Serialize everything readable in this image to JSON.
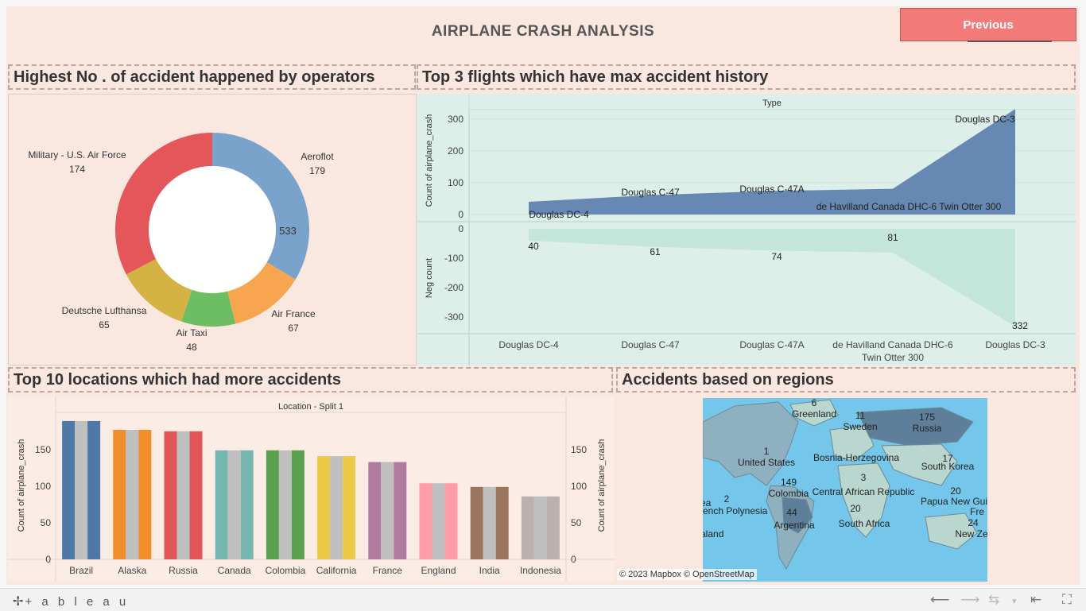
{
  "dashboard": {
    "title": "AIRPLANE CRASH ANALYSIS",
    "previous_button": "Previous"
  },
  "panels": {
    "operators_title": "Highest No . of accident happened by operators",
    "flights_title": "Top 3 flights which have max accident history",
    "locations_title": "Top 10 locations which had more accidents",
    "regions_title": "Accidents based on regions"
  },
  "colors": {
    "blue": "#7aa3cc",
    "orange": "#f8a54f",
    "green": "#6dbd63",
    "yellow": "#d4b244",
    "red": "#e4565a",
    "area_top": "#6688b2",
    "area_bottom": "#cde9e0"
  },
  "chart_data": [
    {
      "id": "operators",
      "type": "pie",
      "donut": true,
      "center_label": "533",
      "slices": [
        {
          "label": "Aeroflot",
          "value": 179,
          "color": "#7aa3cc"
        },
        {
          "label": "Air France",
          "value": 67,
          "color": "#f8a54f"
        },
        {
          "label": "Air Taxi",
          "value": 48,
          "color": "#6dbd63"
        },
        {
          "label": "Deutsche Lufthansa",
          "value": 65,
          "color": "#d4b244"
        },
        {
          "label": "Military - U.S. Air Force",
          "value": 174,
          "color": "#e4565a"
        }
      ]
    },
    {
      "id": "flights",
      "type": "area",
      "header": "Type",
      "categories": [
        "Douglas DC-4",
        "Douglas C-47",
        "Douglas C-47A",
        "de Havilland Canada DHC-6 Twin Otter 300",
        "Douglas DC-3"
      ],
      "category_axis_labels": [
        "Douglas DC-4",
        "Douglas C-47",
        "Douglas C-47A",
        "de Havilland Canada DHC-6|Twin Otter 300",
        "Douglas DC-3"
      ],
      "series": [
        {
          "name": "Count of airplane_crash",
          "values": [
            40,
            61,
            74,
            81,
            332
          ],
          "color": "#6688b2",
          "ylim": [
            0,
            350
          ],
          "ticks": [
            0,
            100,
            200,
            300
          ]
        },
        {
          "name": "Neg count",
          "values": [
            -40,
            -61,
            -74,
            -81,
            -332
          ],
          "color": "#cde9e0",
          "ylim": [
            -350,
            0
          ],
          "ticks": [
            0,
            -100,
            -200,
            -300
          ]
        }
      ],
      "value_labels": [
        "40",
        "61",
        "74",
        "81",
        "332"
      ],
      "top_labels": [
        "Douglas DC-4",
        "Douglas C-47",
        "Douglas C-47A",
        "de Havilland Canada DHC-6 Twin Otter 300",
        "Douglas DC-3"
      ]
    },
    {
      "id": "locations",
      "type": "bar",
      "header": "Location - Split 1",
      "ylabel": "Count of airplane_crash",
      "ylim": [
        0,
        190
      ],
      "ticks": [
        0,
        50,
        100,
        150
      ],
      "categories": [
        "Brazil",
        "Alaska",
        "Russia",
        "Canada",
        "Colombia",
        "California",
        "France",
        "England",
        "India",
        "Indonesia"
      ],
      "values": [
        189,
        177,
        175,
        149,
        149,
        141,
        133,
        104,
        99,
        86
      ],
      "colors": [
        "#4e79a7",
        "#f28e2b",
        "#e15759",
        "#76b7b2",
        "#59a14f",
        "#edc948",
        "#b07aa1",
        "#ff9da7",
        "#9c755f",
        "#bab0ac"
      ],
      "dual_color": "#bfbfbf"
    },
    {
      "id": "regions",
      "type": "map",
      "labels": [
        {
          "name": "Greenland",
          "value": "6"
        },
        {
          "name": "Sweden",
          "value": "11"
        },
        {
          "name": "Russia",
          "value": "175"
        },
        {
          "name": "United States",
          "value": "1"
        },
        {
          "name": "Bosnia-Herzegovina",
          "value": ""
        },
        {
          "name": "South Korea",
          "value": "17"
        },
        {
          "name": "Colombia",
          "value": "149"
        },
        {
          "name": "Central African Republic",
          "value": "3"
        },
        {
          "name": "Papua New Guinea",
          "value": "20"
        },
        {
          "name": "French Polynesia",
          "value": "2"
        },
        {
          "name": "Argentina",
          "value": "44"
        },
        {
          "name": "South Africa",
          "value": "20"
        },
        {
          "name": "Fre",
          "value": "24"
        },
        {
          "name": "New Ze",
          "value": ""
        },
        {
          "name": "ea",
          "value": ""
        },
        {
          "name": "aland",
          "value": ""
        }
      ],
      "attribution": "© 2023 Mapbox  © OpenStreetMap"
    }
  ],
  "footer": {
    "logo": "+ a b l e a u",
    "nav": [
      "undo-icon",
      "redo-icon",
      "revert-icon",
      "first-icon",
      "fullscreen-icon"
    ]
  }
}
